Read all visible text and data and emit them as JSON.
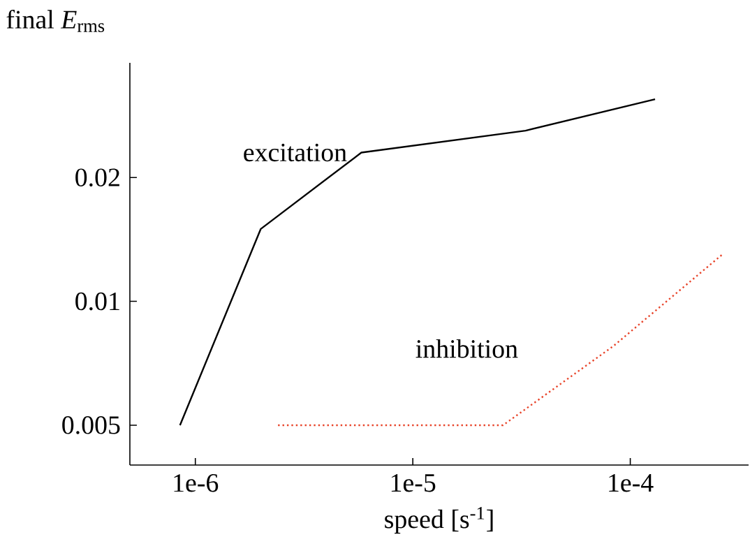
{
  "chart_data": {
    "type": "line",
    "log": "xy",
    "xlabel": "speed [s$^{-1}$]",
    "ylabel": "final *E*$_{rms}$",
    "xlim": [
      5e-07,
      0.00035
    ],
    "ylim": [
      0.004,
      0.038
    ],
    "xticks": [
      {
        "value": 1e-06,
        "label": "1e-6"
      },
      {
        "value": 1e-05,
        "label": "1e-5"
      },
      {
        "value": 0.0001,
        "label": "1e-4"
      }
    ],
    "yticks": [
      0.005,
      0.01,
      0.02
    ],
    "grid": false,
    "marker": "none",
    "series": [
      {
        "name": "excitation",
        "color": "#000000",
        "line_style": "solid",
        "x": [
          8.5e-07,
          2e-06,
          5.8e-06,
          3.3e-05,
          0.00013
        ],
        "values": [
          0.005,
          0.015,
          0.023,
          0.026,
          0.031
        ]
      },
      {
        "name": "inhibition",
        "color": "#e8442a",
        "line_style": "dotted",
        "x": [
          2.4e-06,
          2.6e-05,
          8.4e-05,
          0.000265
        ],
        "values": [
          0.005,
          0.005,
          0.0078,
          0.013
        ]
      }
    ]
  }
}
